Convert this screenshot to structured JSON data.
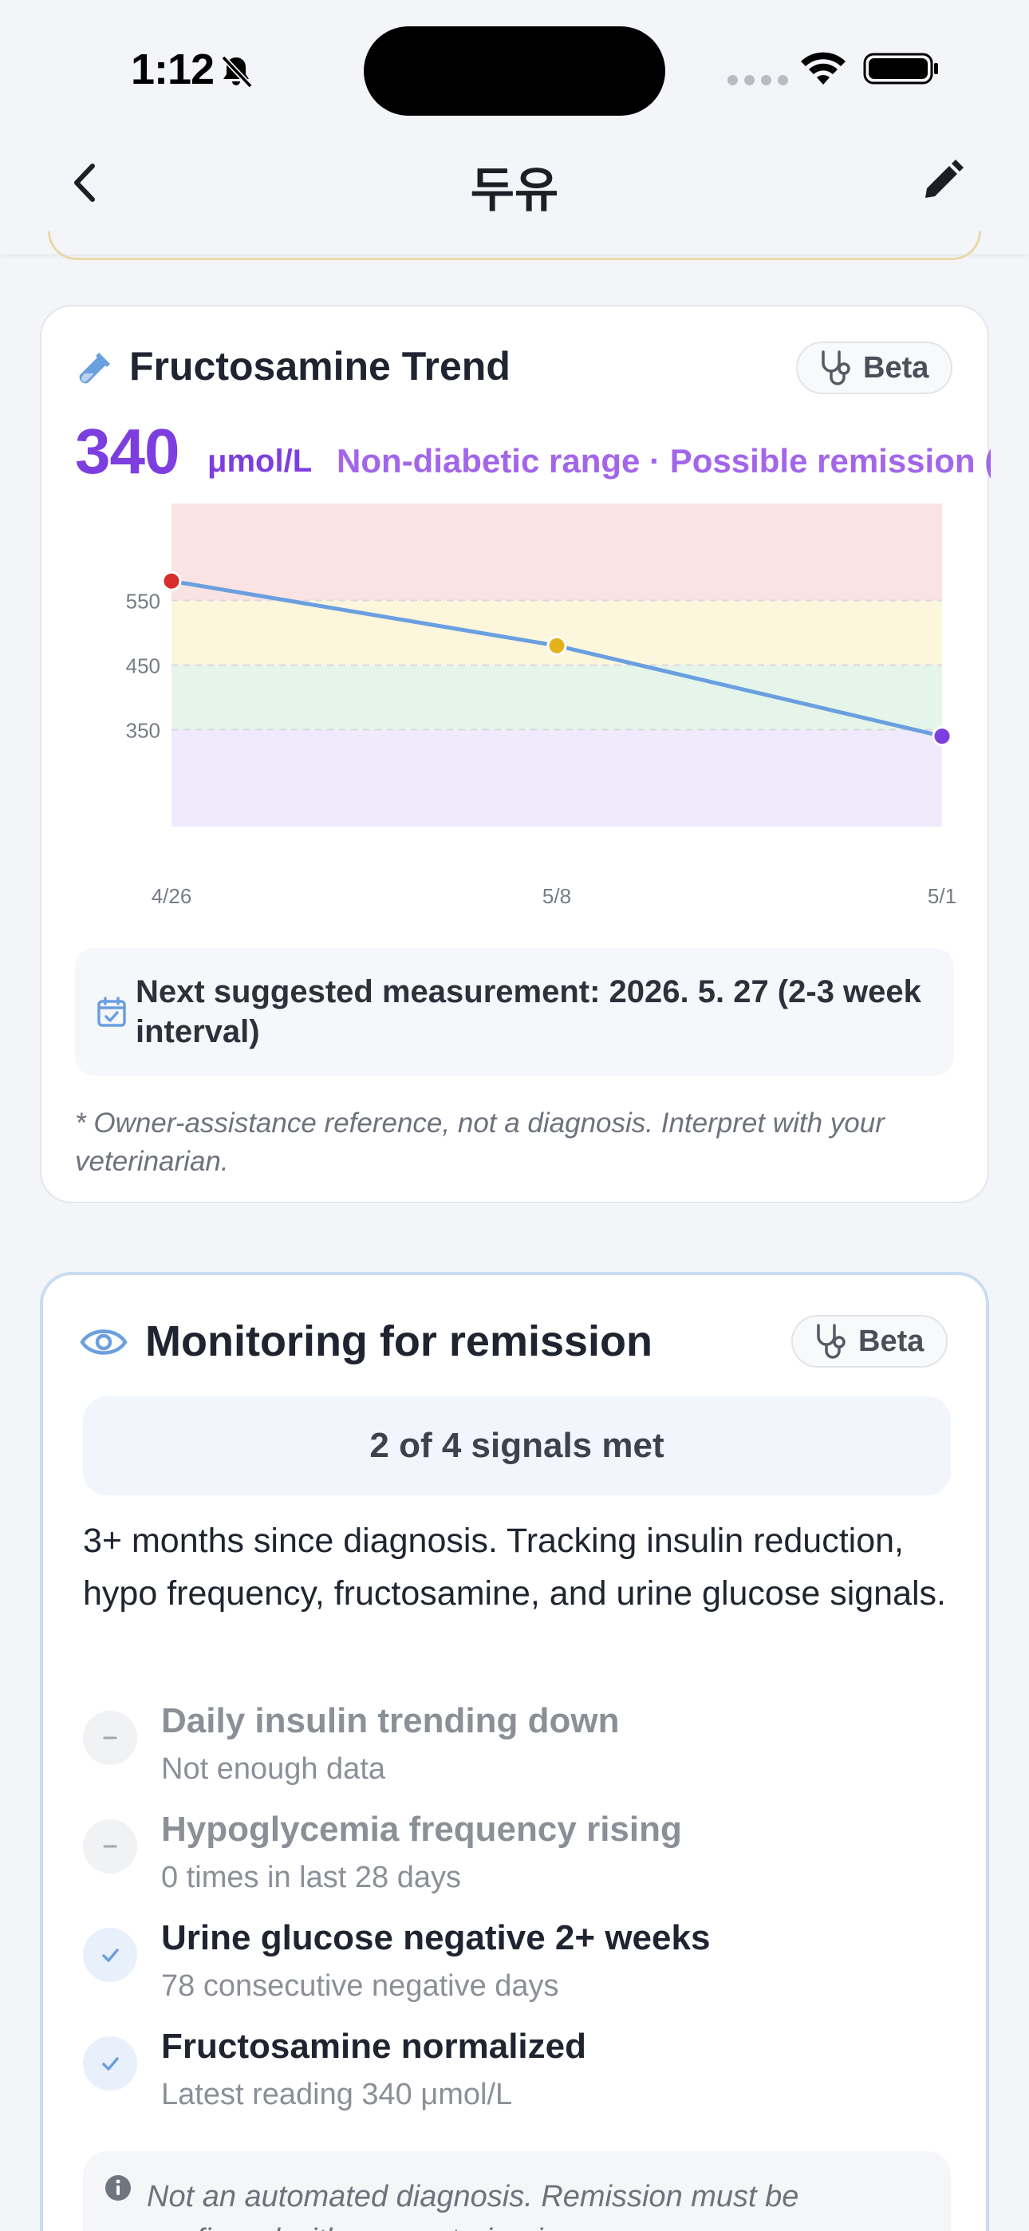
{
  "status_bar": {
    "time": "1:12"
  },
  "nav": {
    "title": "두유"
  },
  "fructosamine": {
    "title": "Fructosamine Trend",
    "beta_label": "Beta",
    "value": "340",
    "unit": "μmol/L",
    "range_label": "Non-diabetic range · Possible remission (<",
    "next_measurement": "Next suggested measurement: 2026. 5. 27 (2-3 week interval)",
    "note": "* Owner-assistance reference, not a diagnosis. Interpret with your veterinarian.",
    "colors": {
      "line": "#6a9fe0",
      "high": "#d62d2d",
      "mid": "#e2b21a",
      "low": "#7d3ee0"
    }
  },
  "chart_data": {
    "type": "line",
    "categories": [
      "4/26",
      "5/8",
      "5/1"
    ],
    "values": [
      580,
      480,
      340
    ],
    "point_colors": [
      "#d62d2d",
      "#e2b21a",
      "#7d3ee0"
    ],
    "y_ticks": [
      350,
      450,
      550
    ],
    "ylim": [
      200,
      700
    ],
    "bands": [
      {
        "from": 550,
        "to": 700,
        "color": "#fbe3e3"
      },
      {
        "from": 450,
        "to": 550,
        "color": "#fcf6dd"
      },
      {
        "from": 350,
        "to": 450,
        "color": "#e6f5ea"
      },
      {
        "from": 200,
        "to": 350,
        "color": "#efeafc"
      }
    ],
    "grid": "dashed at ticks"
  },
  "remission": {
    "title": "Monitoring for remission",
    "beta_label": "Beta",
    "summary": "2 of 4 signals met",
    "description": "3+ months since diagnosis. Tracking insulin reduction, hypo frequency, fructosamine, and urine glucose signals.",
    "signals": [
      {
        "title": "Daily insulin trending down",
        "detail": "Not enough data",
        "status": "none"
      },
      {
        "title": "Hypoglycemia frequency rising",
        "detail": "0 times in last 28 days",
        "status": "none"
      },
      {
        "title": "Urine glucose negative 2+ weeks",
        "detail": "78 consecutive negative days",
        "status": "met"
      },
      {
        "title": "Fructosamine normalized",
        "detail": "Latest reading 340 μmol/L",
        "status": "met"
      }
    ],
    "disclaimer": "Not an automated diagnosis. Remission must be confirmed with your veterinarian."
  }
}
